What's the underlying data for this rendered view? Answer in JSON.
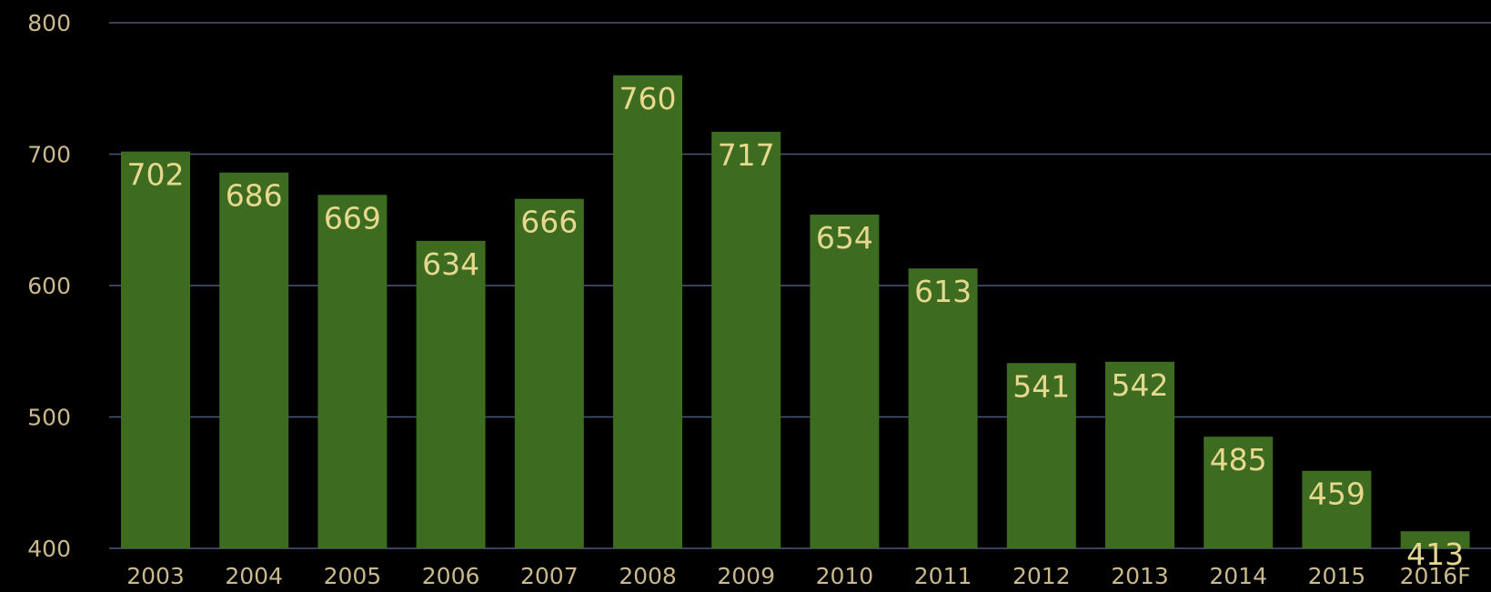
{
  "chart_data": {
    "type": "bar",
    "title": "",
    "xlabel": "",
    "ylabel": "",
    "categories": [
      "2003",
      "2004",
      "2005",
      "2006",
      "2007",
      "2008",
      "2009",
      "2010",
      "2011",
      "2012",
      "2013",
      "2014",
      "2015",
      "2016F"
    ],
    "values": [
      702,
      686,
      669,
      634,
      666,
      760,
      717,
      654,
      613,
      541,
      542,
      485,
      459,
      413
    ],
    "data_labels": [
      "702",
      "686",
      "669",
      "634",
      "666",
      "760",
      "717",
      "654",
      "613",
      "541",
      "542",
      "485",
      "459",
      "413"
    ],
    "ylim": [
      400,
      800
    ],
    "yticks": [
      400,
      500,
      600,
      700,
      800
    ],
    "ytick_labels": [
      "400",
      "500",
      "600",
      "700",
      "800"
    ],
    "grid": true,
    "legend": "none",
    "colors": {
      "background": "#000000",
      "bar": "#3d6b1f",
      "gridline": "#4a5878",
      "tick_text": "#c9b98c",
      "data_label_text": "#e6d98f"
    }
  }
}
